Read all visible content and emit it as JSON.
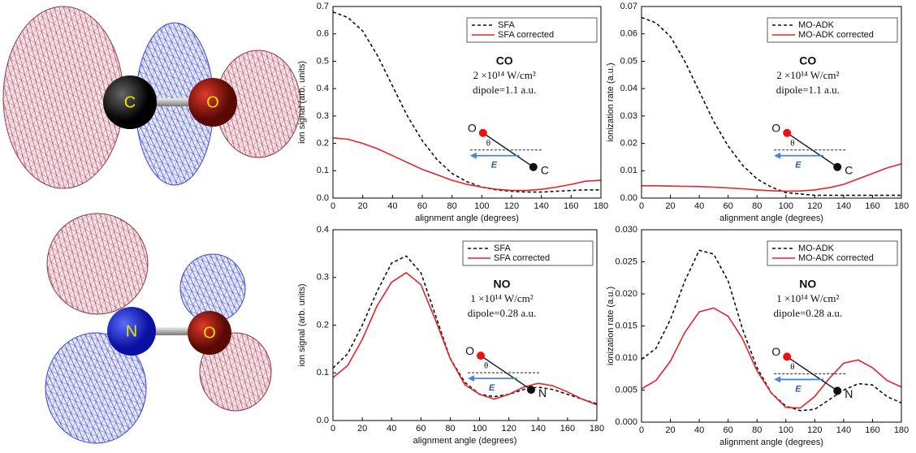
{
  "molecules": {
    "top": {
      "left": "C",
      "right": "O"
    },
    "bottom": {
      "left": "N",
      "right": "O"
    }
  },
  "chart_data": [
    {
      "type": "line",
      "x_label": "alignment angle (degrees)",
      "y_label": "ion signal (arb. units)",
      "xlim": [
        0,
        180
      ],
      "xticks": [
        0,
        20,
        40,
        60,
        80,
        100,
        120,
        140,
        160,
        180
      ],
      "ylim": [
        0,
        0.7
      ],
      "yticks": [
        {
          "value": 0,
          "label": "0.0"
        },
        0.1,
        0.2,
        0.3,
        0.4,
        0.5,
        0.6,
        0.7
      ],
      "x": [
        0,
        10,
        20,
        30,
        40,
        50,
        60,
        70,
        80,
        90,
        100,
        110,
        120,
        130,
        140,
        150,
        160,
        170,
        180
      ],
      "series": [
        {
          "name": "SFA",
          "color": "#111111",
          "style": "dashed",
          "values": [
            0.68,
            0.66,
            0.61,
            0.52,
            0.41,
            0.3,
            0.21,
            0.14,
            0.09,
            0.06,
            0.04,
            0.03,
            0.025,
            0.022,
            0.022,
            0.025,
            0.028,
            0.03,
            0.03
          ]
        },
        {
          "name": "SFA corrected",
          "color": "#e8232b",
          "style": "solid",
          "values": [
            0.22,
            0.215,
            0.2,
            0.18,
            0.155,
            0.13,
            0.105,
            0.085,
            0.065,
            0.05,
            0.04,
            0.032,
            0.028,
            0.028,
            0.032,
            0.04,
            0.05,
            0.062,
            0.065
          ]
        }
      ],
      "annotations": [
        "CO",
        "2 ×10¹⁴ W/cm²",
        "dipole=1.1 a.u."
      ],
      "inset": {
        "top_atom": "O",
        "bottom_atom": "C",
        "angle": "θ",
        "field": "E"
      }
    },
    {
      "type": "line",
      "x_label": "alignment angle (degrees)",
      "y_label": "ionization rate (a.u.)",
      "xlim": [
        0,
        180
      ],
      "xticks": [
        0,
        20,
        40,
        60,
        80,
        100,
        120,
        140,
        160,
        180
      ],
      "ylim": [
        0,
        0.07
      ],
      "yticks": [
        {
          "value": 0,
          "label": "0.00"
        },
        0.01,
        0.02,
        0.03,
        0.04,
        0.05,
        0.06,
        0.07
      ],
      "x": [
        0,
        10,
        20,
        30,
        40,
        50,
        60,
        70,
        80,
        90,
        100,
        110,
        120,
        130,
        140,
        150,
        160,
        170,
        180
      ],
      "series": [
        {
          "name": "MO-ADK",
          "color": "#111111",
          "style": "dashed",
          "values": [
            0.066,
            0.064,
            0.059,
            0.05,
            0.039,
            0.028,
            0.019,
            0.012,
            0.007,
            0.004,
            0.002,
            0.0015,
            0.001,
            0.001,
            0.001,
            0.001,
            0.001,
            0.001,
            0.001
          ]
        },
        {
          "name": "MO-ADK corrected",
          "color": "#e8232b",
          "style": "solid",
          "values": [
            0.0045,
            0.0045,
            0.0044,
            0.0043,
            0.0042,
            0.004,
            0.0037,
            0.0034,
            0.003,
            0.0027,
            0.0025,
            0.0026,
            0.003,
            0.0038,
            0.005,
            0.007,
            0.009,
            0.011,
            0.0125
          ]
        }
      ],
      "annotations": [
        "CO",
        "2 ×10¹⁴ W/cm²",
        "dipole=1.1 a.u."
      ],
      "inset": {
        "top_atom": "O",
        "bottom_atom": "C",
        "angle": "θ",
        "field": "E"
      }
    },
    {
      "type": "line",
      "x_label": "alignment angle (degrees)",
      "y_label": "ion signal (arb. units)",
      "xlim": [
        0,
        180
      ],
      "xticks": [
        0,
        20,
        40,
        60,
        80,
        100,
        120,
        140,
        160,
        180
      ],
      "ylim": [
        0,
        0.4
      ],
      "yticks": [
        {
          "value": 0,
          "label": "0.0"
        },
        0.1,
        0.2,
        0.3,
        0.4
      ],
      "x": [
        0,
        10,
        20,
        30,
        40,
        50,
        60,
        70,
        80,
        90,
        100,
        110,
        120,
        130,
        140,
        150,
        160,
        170,
        180
      ],
      "series": [
        {
          "name": "SFA",
          "color": "#111111",
          "style": "dashed",
          "values": [
            0.11,
            0.14,
            0.2,
            0.27,
            0.33,
            0.345,
            0.31,
            0.22,
            0.13,
            0.08,
            0.055,
            0.05,
            0.055,
            0.065,
            0.07,
            0.065,
            0.055,
            0.045,
            0.035
          ]
        },
        {
          "name": "SFA corrected",
          "color": "#e8232b",
          "style": "solid",
          "values": [
            0.09,
            0.115,
            0.17,
            0.24,
            0.29,
            0.31,
            0.285,
            0.21,
            0.13,
            0.075,
            0.055,
            0.045,
            0.055,
            0.07,
            0.078,
            0.073,
            0.06,
            0.045,
            0.033
          ]
        }
      ],
      "annotations": [
        "NO",
        "1 ×10¹⁴ W/cm²",
        "dipole=0.28 a.u."
      ],
      "inset": {
        "top_atom": "O",
        "bottom_atom": "N",
        "angle": "θ",
        "field": "E"
      }
    },
    {
      "type": "line",
      "x_label": "alignment angle (degrees)",
      "y_label": "ionization rate (a.u.)",
      "xlim": [
        0,
        180
      ],
      "xticks": [
        0,
        20,
        40,
        60,
        80,
        100,
        120,
        140,
        160,
        180
      ],
      "ylim": [
        0,
        0.03
      ],
      "yticks": [
        {
          "value": 0,
          "label": "0.000"
        },
        {
          "value": 0.005,
          "label": "0.005"
        },
        {
          "value": 0.01,
          "label": "0.010"
        },
        {
          "value": 0.015,
          "label": "0.015"
        },
        {
          "value": 0.02,
          "label": "0.020"
        },
        {
          "value": 0.025,
          "label": "0.025"
        },
        {
          "value": 0.03,
          "label": "0.030"
        }
      ],
      "x": [
        0,
        10,
        20,
        30,
        40,
        50,
        60,
        70,
        80,
        90,
        100,
        110,
        120,
        130,
        140,
        150,
        160,
        170,
        180
      ],
      "series": [
        {
          "name": "MO-ADK",
          "color": "#111111",
          "style": "dashed",
          "values": [
            0.0098,
            0.0115,
            0.016,
            0.022,
            0.0268,
            0.0262,
            0.022,
            0.0145,
            0.0085,
            0.0045,
            0.0025,
            0.0018,
            0.002,
            0.0035,
            0.005,
            0.006,
            0.0058,
            0.004,
            0.003
          ]
        },
        {
          "name": "MO-ADK corrected",
          "color": "#e8232b",
          "style": "solid",
          "values": [
            0.0052,
            0.0065,
            0.0095,
            0.014,
            0.0172,
            0.0178,
            0.0165,
            0.013,
            0.008,
            0.0045,
            0.0023,
            0.0022,
            0.004,
            0.0068,
            0.0092,
            0.0097,
            0.0085,
            0.0065,
            0.0055
          ]
        }
      ],
      "annotations": [
        "NO",
        "1 ×10¹⁴ W/cm²",
        "dipole=0.28 a.u."
      ],
      "inset": {
        "top_atom": "O",
        "bottom_atom": "N",
        "angle": "θ",
        "field": "E"
      }
    }
  ]
}
